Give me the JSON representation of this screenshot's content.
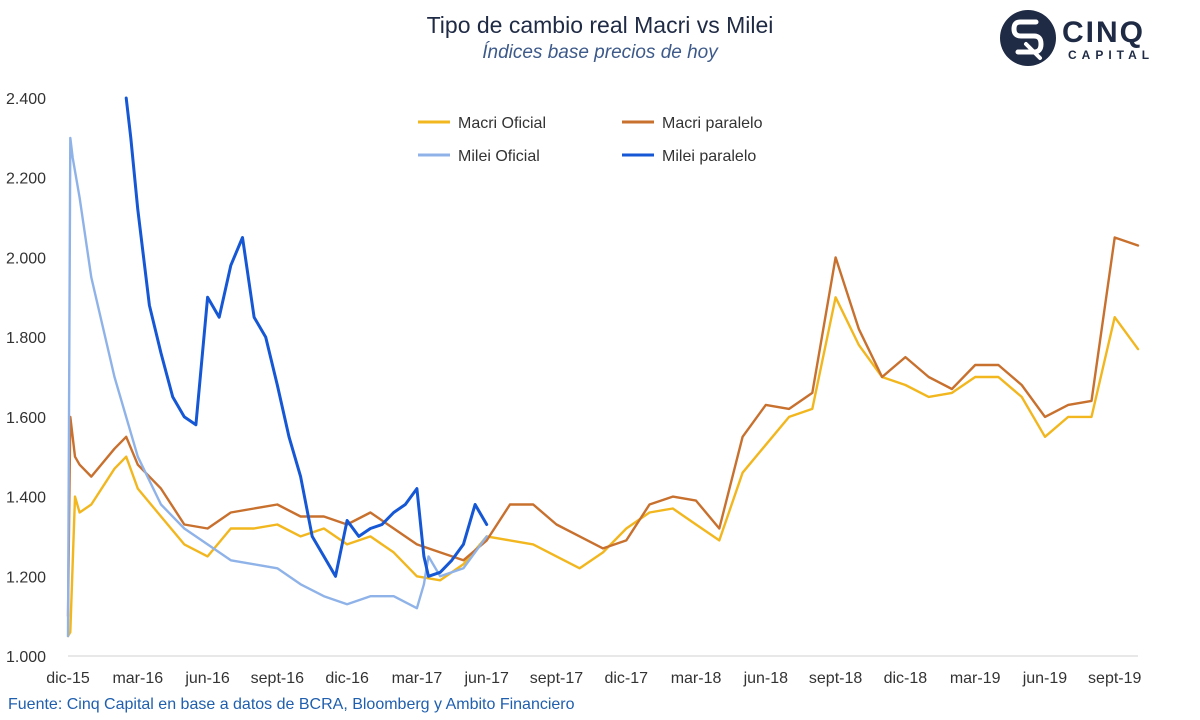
{
  "chart_data": {
    "type": "line",
    "title": "Tipo de cambio real Macri vs Milei",
    "subtitle": "Índices base precios de hoy",
    "source": "Fuente: Cinq Capital en base a datos de BCRA, Bloomberg y Ambito Financiero",
    "xlabel": "",
    "ylabel": "",
    "ylim": [
      1000,
      2400
    ],
    "yticks": [
      1000,
      1200,
      1400,
      1600,
      1800,
      2000,
      2200,
      2400
    ],
    "ytick_labels": [
      "1.000",
      "1.200",
      "1.400",
      "1.600",
      "1.800",
      "2.000",
      "2.200",
      "2.400"
    ],
    "xlim": [
      0,
      46
    ],
    "xtick_positions": [
      0,
      3,
      6,
      9,
      12,
      15,
      18,
      21,
      24,
      27,
      30,
      33,
      36,
      39,
      42,
      45
    ],
    "xtick_labels": [
      "dic-15",
      "mar-16",
      "jun-16",
      "sept-16",
      "dic-16",
      "mar-17",
      "jun-17",
      "sept-17",
      "dic-17",
      "mar-18",
      "jun-18",
      "sept-18",
      "dic-18",
      "mar-19",
      "jun-19",
      "sept-19"
    ],
    "x_unit": "months since dic-15",
    "grid": false,
    "legend_position": "top",
    "series": [
      {
        "name": "Macri Oficial",
        "color": "#f2b71f",
        "x": [
          0,
          0.1,
          0.3,
          0.5,
          1,
          2,
          2.5,
          3,
          4,
          5,
          6,
          7,
          8,
          9,
          10,
          11,
          12,
          13,
          14,
          15,
          16,
          17,
          18,
          19,
          20,
          21,
          22,
          23,
          24,
          25,
          26,
          27,
          28,
          29,
          30,
          31,
          32,
          33,
          34,
          35,
          36,
          37,
          38,
          39,
          40,
          41,
          42,
          43,
          44,
          45,
          46
        ],
        "values": [
          1050,
          1060,
          1400,
          1360,
          1380,
          1470,
          1500,
          1420,
          1350,
          1280,
          1250,
          1320,
          1320,
          1330,
          1300,
          1320,
          1280,
          1300,
          1260,
          1200,
          1190,
          1230,
          1300,
          1290,
          1280,
          1250,
          1220,
          1260,
          1320,
          1360,
          1370,
          1330,
          1290,
          1460,
          1530,
          1600,
          1620,
          1900,
          1780,
          1700,
          1680,
          1650,
          1660,
          1700,
          1700,
          1650,
          1550,
          1600,
          1600,
          1850,
          1770
        ]
      },
      {
        "name": "Macri paralelo",
        "color": "#c8702e",
        "x": [
          0,
          0.1,
          0.3,
          0.5,
          1,
          2,
          2.5,
          3,
          4,
          5,
          6,
          7,
          8,
          9,
          10,
          11,
          12,
          13,
          14,
          15,
          16,
          17,
          18,
          19,
          20,
          21,
          22,
          23,
          24,
          25,
          26,
          27,
          28,
          29,
          30,
          31,
          32,
          33,
          34,
          35,
          36,
          37,
          38,
          39,
          40,
          41,
          42,
          43,
          44,
          45,
          46
        ],
        "values": [
          1100,
          1600,
          1500,
          1480,
          1450,
          1520,
          1550,
          1480,
          1420,
          1330,
          1320,
          1360,
          1370,
          1380,
          1350,
          1350,
          1330,
          1360,
          1320,
          1280,
          1260,
          1240,
          1290,
          1380,
          1380,
          1330,
          1300,
          1270,
          1290,
          1380,
          1400,
          1390,
          1320,
          1550,
          1630,
          1620,
          1660,
          2000,
          1820,
          1700,
          1750,
          1700,
          1670,
          1730,
          1730,
          1680,
          1600,
          1630,
          1640,
          2050,
          2030
        ]
      },
      {
        "name": "Milei Oficial",
        "color": "#8fb3e8",
        "x": [
          0,
          0.1,
          0.2,
          0.5,
          1,
          2,
          3,
          4,
          5,
          6,
          7,
          8,
          9,
          10,
          11,
          12,
          13,
          14,
          15,
          15.3,
          15.5,
          16,
          17,
          18
        ],
        "values": [
          1050,
          2300,
          2250,
          2150,
          1950,
          1700,
          1500,
          1380,
          1320,
          1280,
          1240,
          1230,
          1220,
          1180,
          1150,
          1130,
          1150,
          1150,
          1120,
          1180,
          1250,
          1200,
          1220,
          1300
        ]
      },
      {
        "name": "Milei paralelo",
        "color": "#1557d4",
        "x": [
          2.5,
          2.7,
          3,
          3.5,
          4,
          4.5,
          5,
          5.5,
          6,
          6.5,
          7,
          7.5,
          8,
          8.5,
          9,
          9.5,
          10,
          10.5,
          11,
          11.5,
          12,
          12.5,
          13,
          13.5,
          14,
          14.5,
          15,
          15.3,
          15.5,
          16,
          16.5,
          17,
          17.5,
          18
        ],
        "values": [
          2400,
          2300,
          2120,
          1880,
          1760,
          1650,
          1600,
          1580,
          1900,
          1850,
          1980,
          2050,
          1850,
          1800,
          1680,
          1550,
          1450,
          1300,
          1250,
          1200,
          1340,
          1300,
          1320,
          1330,
          1360,
          1380,
          1420,
          1250,
          1200,
          1210,
          1240,
          1280,
          1380,
          1330
        ]
      }
    ]
  },
  "logo": {
    "name": "CINQ",
    "sub": "CAPITAL"
  }
}
